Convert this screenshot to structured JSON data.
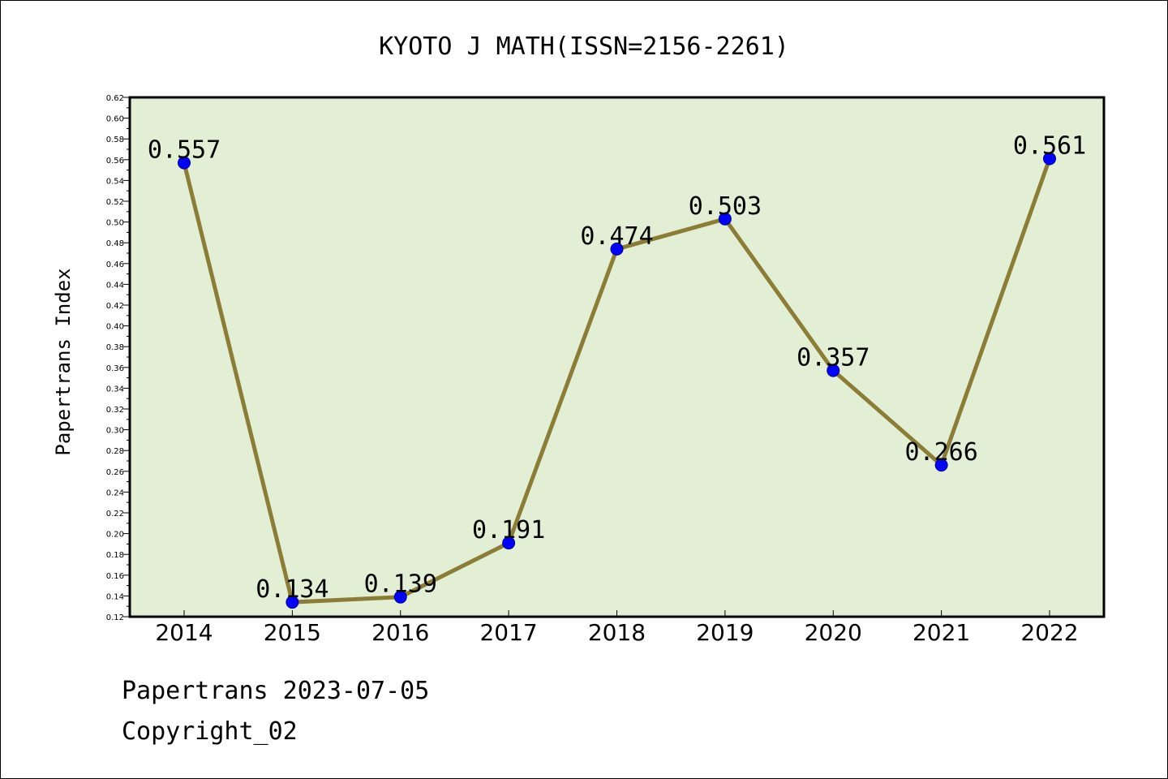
{
  "chart_data": {
    "type": "line",
    "title": "KYOTO J MATH(ISSN=2156-2261)",
    "xlabel": "",
    "ylabel": "Papertrans Index",
    "categories": [
      "2014",
      "2015",
      "2016",
      "2017",
      "2018",
      "2019",
      "2020",
      "2021",
      "2022"
    ],
    "series": [
      {
        "values": [
          0.557,
          0.134,
          0.139,
          0.191,
          0.474,
          0.503,
          0.357,
          0.266,
          0.561
        ],
        "labels": [
          "0.557",
          "0.134",
          "0.139",
          "0.191",
          "0.474",
          "0.503",
          "0.357",
          "0.266",
          "0.561"
        ]
      }
    ],
    "ylim": [
      0.12,
      0.62
    ],
    "y_ticks": [
      "0.12",
      "0.14",
      "0.16",
      "0.18",
      "0.20",
      "0.22",
      "0.24",
      "0.26",
      "0.28",
      "0.30",
      "0.32",
      "0.34",
      "0.36",
      "0.38",
      "0.40",
      "0.42",
      "0.44",
      "0.46",
      "0.48",
      "0.50",
      "0.52",
      "0.54",
      "0.56",
      "0.58",
      "0.60",
      "0.62"
    ],
    "grid": false,
    "legend": "none",
    "colors": {
      "plot_background": "#e2efd4",
      "line": "#8b7d36",
      "marker": "#0000ff",
      "marker_edge": "#00008b",
      "frame": "#000000"
    }
  },
  "footer": {
    "source": "Papertrans 2023-07-05",
    "copyright": "Copyright_02"
  }
}
